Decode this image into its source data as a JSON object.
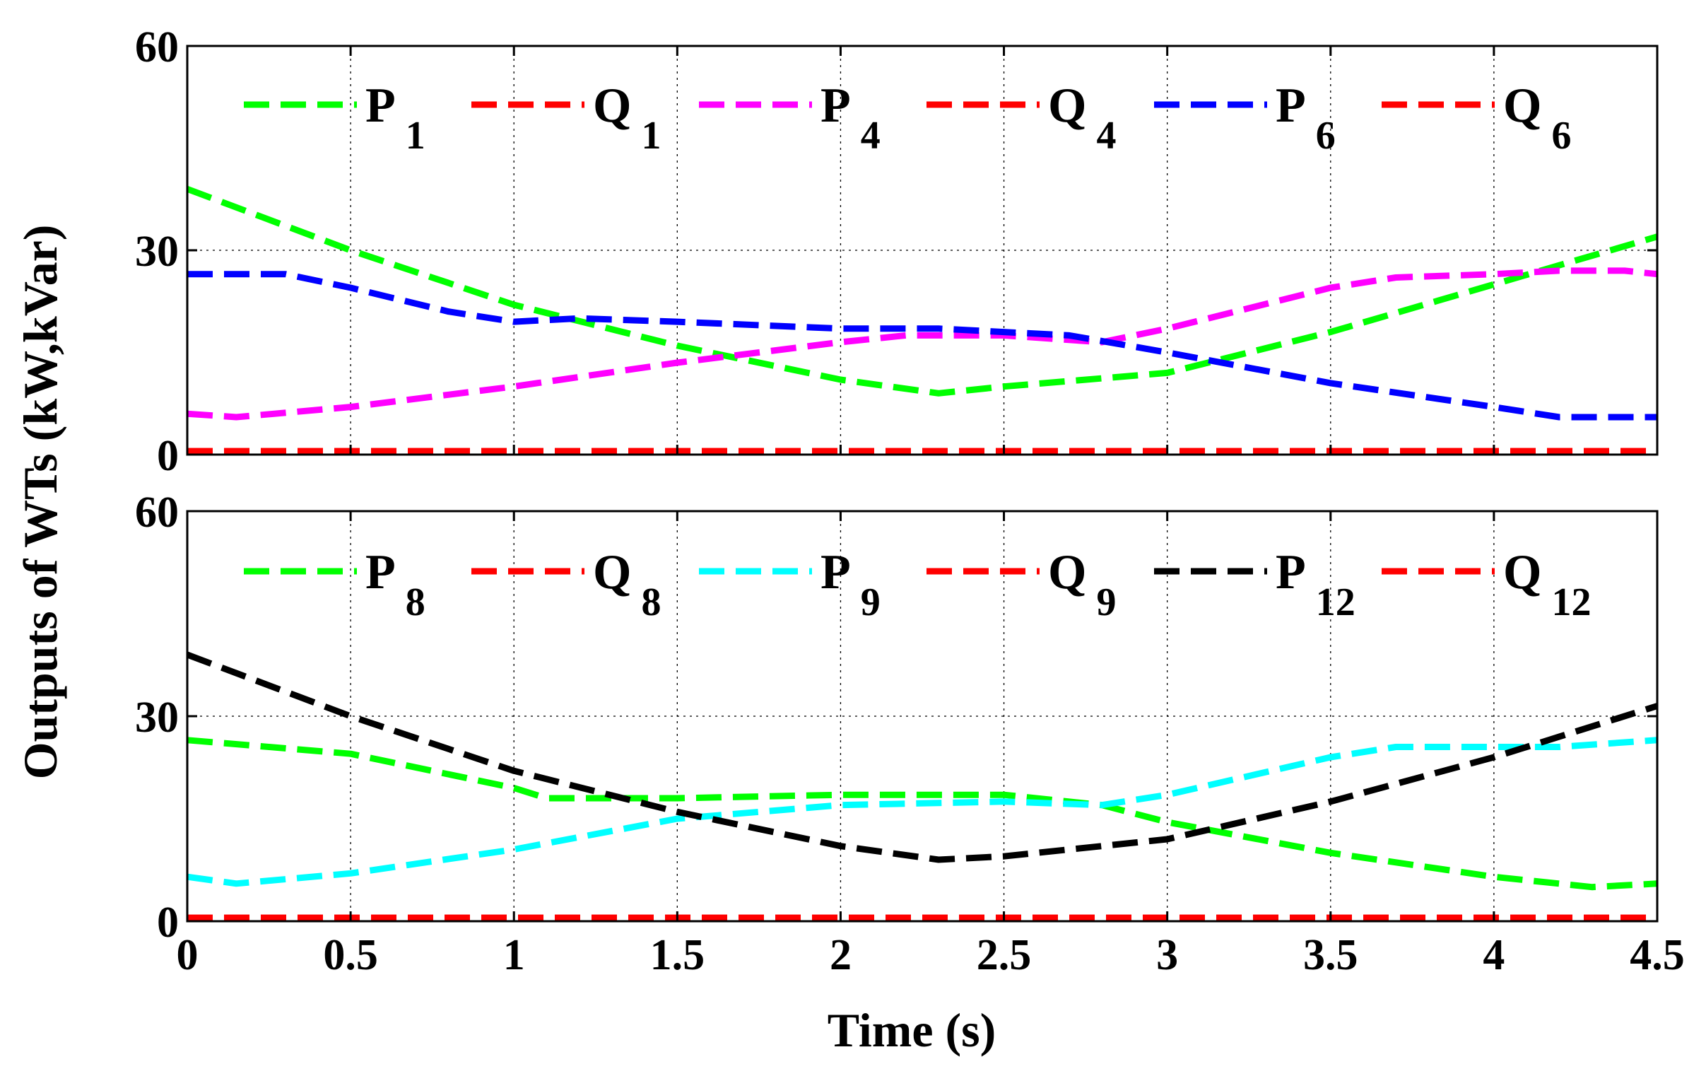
{
  "chart_data": {
    "type": "line",
    "xlabel": "Time (s)",
    "ylabel": "Outputs of WTs (kW,kVar)",
    "xlim": [
      0,
      4.5
    ],
    "x_ticks": [
      "0",
      "0.5",
      "1",
      "1.5",
      "2",
      "2.5",
      "3",
      "3.5",
      "4",
      "4.5"
    ],
    "x_tick_values": [
      0,
      0.5,
      1,
      1.5,
      2,
      2.5,
      3,
      3.5,
      4,
      4.5
    ],
    "grid": true,
    "panels": [
      {
        "ylim": [
          0,
          60
        ],
        "y_ticks": [
          "0",
          "30",
          "60"
        ],
        "y_tick_values": [
          0,
          30,
          60
        ],
        "legend_position": "top",
        "series": [
          {
            "name": "P",
            "sub": "1",
            "color": "#00ff00",
            "x": [
              0,
              0.5,
              1,
              1.5,
              2,
              2.3,
              2.5,
              3,
              3.5,
              4,
              4.5
            ],
            "y": [
              39,
              30,
              22,
              16,
              11,
              9,
              10,
              12,
              18,
              25,
              32
            ]
          },
          {
            "name": "Q",
            "sub": "1",
            "color": "#ff0000",
            "x": [
              0,
              0.5,
              1,
              1.5,
              2,
              2.5,
              3,
              3.5,
              4,
              4.5
            ],
            "y": [
              0.5,
              0.5,
              0.5,
              0.5,
              0.5,
              0.5,
              0.5,
              0.5,
              0.5,
              0.5
            ]
          },
          {
            "name": "P",
            "sub": "4",
            "color": "#ff00ff",
            "x": [
              0,
              0.15,
              0.5,
              1,
              1.5,
              2,
              2.2,
              2.5,
              2.8,
              3,
              3.5,
              3.7,
              4,
              4.2,
              4.4,
              4.5
            ],
            "y": [
              6,
              5.5,
              7,
              10,
              13.5,
              16.5,
              17.5,
              17.5,
              16.5,
              18.5,
              24.5,
              26,
              26.5,
              27,
              27,
              26.5
            ]
          },
          {
            "name": "Q",
            "sub": "4",
            "color": "#ff0000",
            "x": [
              0,
              0.5,
              1,
              1.5,
              2,
              2.5,
              3,
              3.5,
              4,
              4.5
            ],
            "y": [
              0.5,
              0.5,
              0.5,
              0.5,
              0.5,
              0.5,
              0.5,
              0.5,
              0.5,
              0.5
            ]
          },
          {
            "name": "P",
            "sub": "6",
            "color": "#0000ff",
            "x": [
              0,
              0.3,
              0.5,
              0.8,
              1,
              1.2,
              1.5,
              2,
              2.3,
              2.7,
              3,
              3.5,
              4,
              4.2,
              4.5
            ],
            "y": [
              26.5,
              26.5,
              24.5,
              21,
              19.5,
              20,
              19.5,
              18.5,
              18.5,
              17.5,
              15,
              10.5,
              7,
              5.5,
              5.5
            ]
          },
          {
            "name": "Q",
            "sub": "6",
            "color": "#ff0000",
            "x": [
              0,
              0.5,
              1,
              1.5,
              2,
              2.5,
              3,
              3.5,
              4,
              4.5
            ],
            "y": [
              0.5,
              0.5,
              0.5,
              0.5,
              0.5,
              0.5,
              0.5,
              0.5,
              0.5,
              0.5
            ]
          }
        ]
      },
      {
        "ylim": [
          0,
          60
        ],
        "y_ticks": [
          "0",
          "30",
          "60"
        ],
        "y_tick_values": [
          0,
          30,
          60
        ],
        "legend_position": "top",
        "series": [
          {
            "name": "P",
            "sub": "8",
            "color": "#00ff00",
            "x": [
              0,
              0.5,
              1,
              1.1,
              1.5,
              2,
              2.5,
              2.8,
              3,
              3.5,
              4,
              4.3,
              4.5
            ],
            "y": [
              26.5,
              24.5,
              19.5,
              18,
              18,
              18.5,
              18.5,
              17,
              14.5,
              10,
              6.5,
              5,
              5.5
            ]
          },
          {
            "name": "Q",
            "sub": "8",
            "color": "#ff0000",
            "x": [
              0,
              0.5,
              1,
              1.5,
              2,
              2.5,
              3,
              3.5,
              4,
              4.5
            ],
            "y": [
              0.5,
              0.5,
              0.5,
              0.5,
              0.5,
              0.5,
              0.5,
              0.5,
              0.5,
              0.5
            ]
          },
          {
            "name": "P",
            "sub": "9",
            "color": "#00ffff",
            "x": [
              0,
              0.15,
              0.5,
              1,
              1.5,
              2,
              2.5,
              2.8,
              3,
              3.5,
              3.7,
              4,
              4.2,
              4.5
            ],
            "y": [
              6.5,
              5.5,
              7,
              10.5,
              15,
              17,
              17.5,
              17,
              18.5,
              24,
              25.5,
              25.5,
              25.5,
              26.5
            ]
          },
          {
            "name": "Q",
            "sub": "9",
            "color": "#ff0000",
            "x": [
              0,
              0.5,
              1,
              1.5,
              2,
              2.5,
              3,
              3.5,
              4,
              4.5
            ],
            "y": [
              0.5,
              0.5,
              0.5,
              0.5,
              0.5,
              0.5,
              0.5,
              0.5,
              0.5,
              0.5
            ]
          },
          {
            "name": "P",
            "sub": "12",
            "color": "#000000",
            "x": [
              0,
              0.5,
              1,
              1.5,
              2,
              2.3,
              2.5,
              3,
              3.5,
              4,
              4.5
            ],
            "y": [
              39,
              30,
              22,
              16,
              11,
              9,
              9.5,
              12,
              17.5,
              24,
              31.5
            ]
          },
          {
            "name": "Q",
            "sub": "12",
            "color": "#ff0000",
            "x": [
              0,
              0.5,
              1,
              1.5,
              2,
              2.5,
              3,
              3.5,
              4,
              4.5
            ],
            "y": [
              0.5,
              0.5,
              0.5,
              0.5,
              0.5,
              0.5,
              0.5,
              0.5,
              0.5,
              0.5
            ]
          }
        ]
      }
    ]
  }
}
